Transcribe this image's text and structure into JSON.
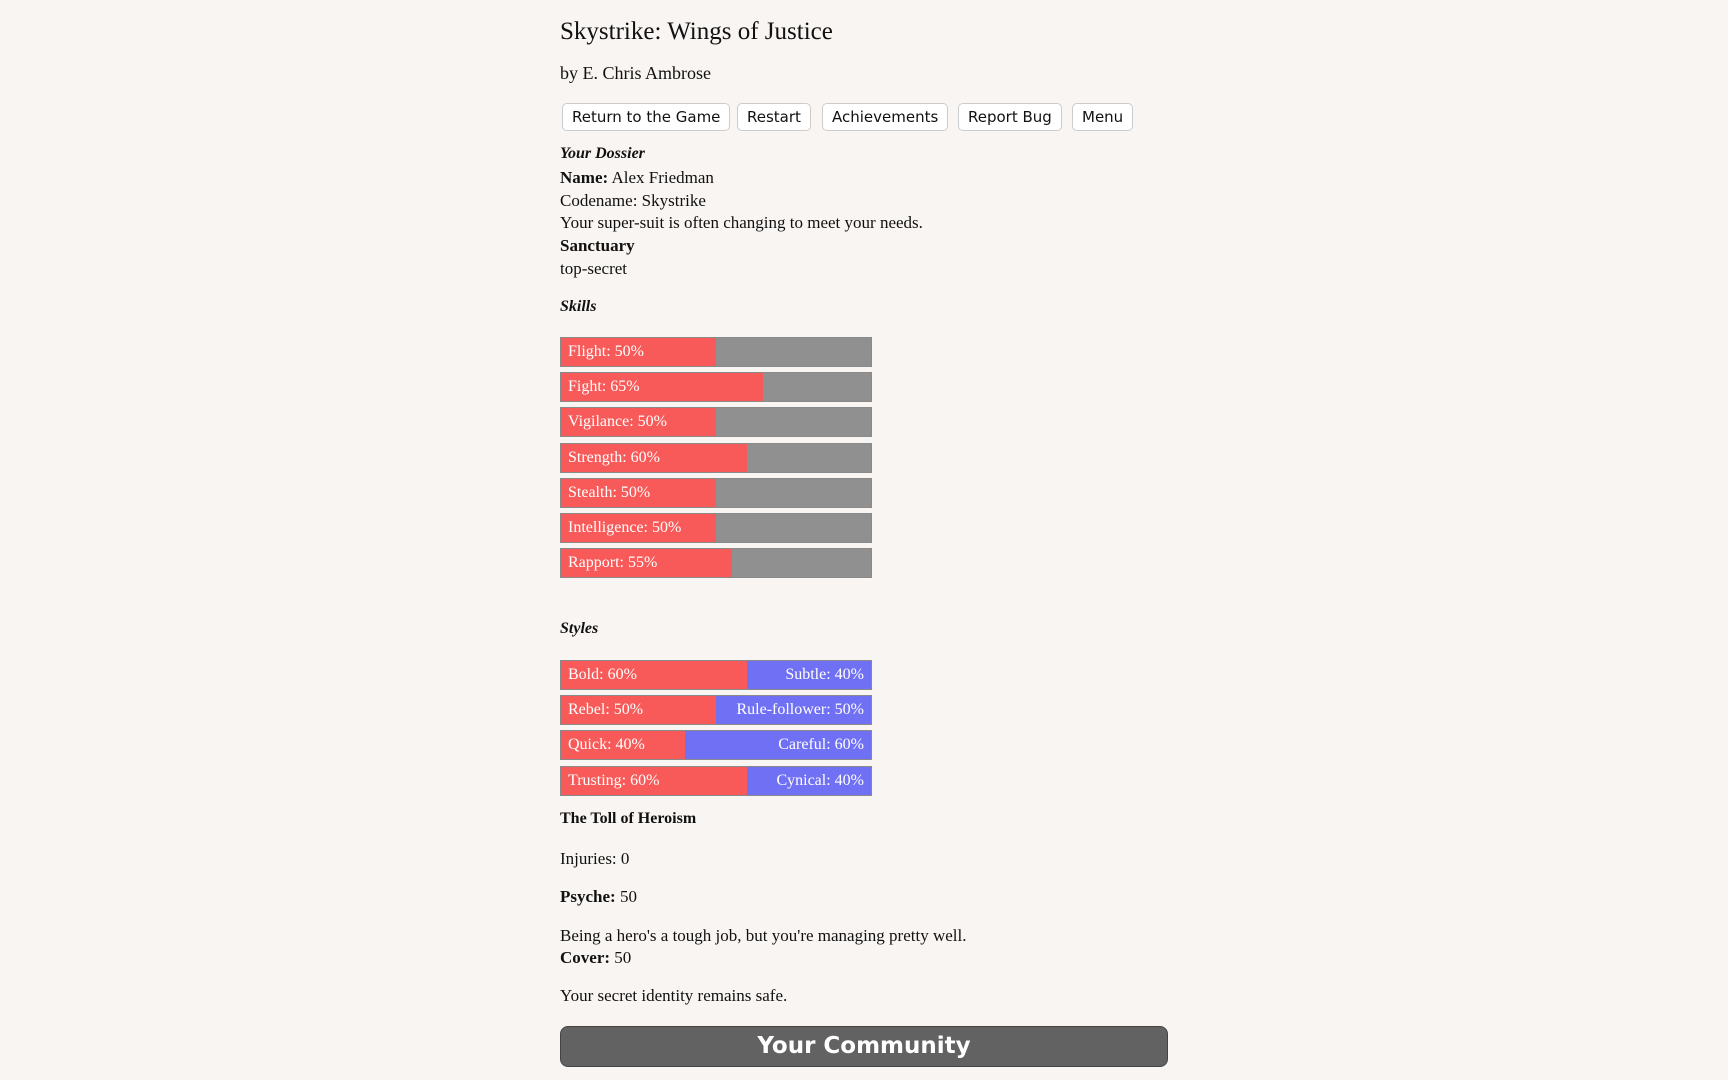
{
  "header": {
    "title": "Skystrike: Wings of Justice",
    "author": "by E. Chris Ambrose"
  },
  "buttons": [
    "Return to the Game",
    "Restart",
    "Achievements",
    "Report Bug",
    "Menu"
  ],
  "dossier": {
    "heading": "Your Dossier",
    "name_label": "Name:",
    "name": "Alex Friedman",
    "codename": "Codename: Skystrike",
    "suit": "Your super-suit is often changing to meet your needs.",
    "sanctuary_label": "Sanctuary",
    "sanctuary": "top-secret"
  },
  "skills": {
    "heading": "Skills",
    "xlim": [
      0,
      100
    ],
    "items": [
      {
        "text": "Flight: 50%",
        "value": 50
      },
      {
        "text": "Fight: 65%",
        "value": 65
      },
      {
        "text": "Vigilance: 50%",
        "value": 50
      },
      {
        "text": "Strength: 60%",
        "value": 60
      },
      {
        "text": "Stealth: 50%",
        "value": 50
      },
      {
        "text": "Intelligence: 50%",
        "value": 50
      },
      {
        "text": "Rapport: 55%",
        "value": 55
      }
    ]
  },
  "styles": {
    "heading": "Styles",
    "xlim": [
      0,
      100
    ],
    "items": [
      {
        "left": "Bold: 60%",
        "left_value": 60,
        "right": "Subtle: 40%",
        "right_value": 40
      },
      {
        "left": "Rebel: 50%",
        "left_value": 50,
        "right": "Rule-follower: 50%",
        "right_value": 50
      },
      {
        "left": "Quick: 40%",
        "left_value": 40,
        "right": "Careful: 60%",
        "right_value": 60
      },
      {
        "left": "Trusting: 60%",
        "left_value": 60,
        "right": "Cynical: 40%",
        "right_value": 40
      }
    ]
  },
  "toll": {
    "heading": "The Toll of Heroism",
    "injuries": "Injuries: 0",
    "psyche_label": "Psyche:",
    "psyche": "50",
    "psyche_text": "Being a hero's a tough job, but you're managing pretty well.",
    "cover_label": "Cover:",
    "cover": "50",
    "cover_text": "Your secret identity remains safe."
  },
  "community": "Your Community"
}
